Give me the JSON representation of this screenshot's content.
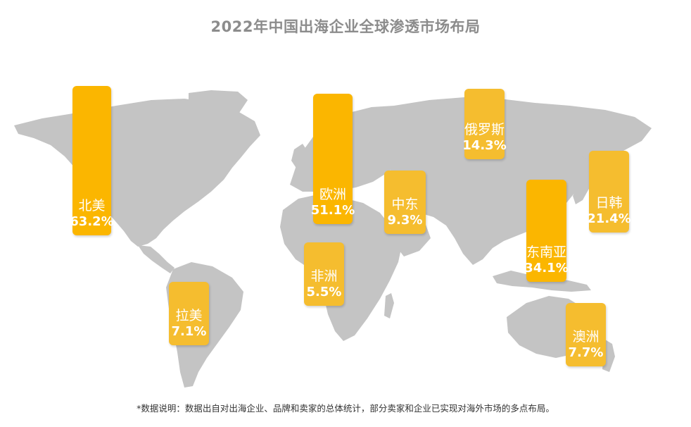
{
  "page": {
    "title": "2022年中国出海企业全球渗透市场布局",
    "footnote": "*数据说明：数据出自对出海企业、品牌和卖家的总体统计，部分卖家和企业已实现对海外市场的多点布局。"
  },
  "colors": {
    "land": "#c4c4c4",
    "bar_strong": "#fbb600",
    "bar_light": "#f5bd2f",
    "text_on_bar": "#ffffff",
    "title": "#8c8c8c"
  },
  "chart_data": {
    "type": "bar",
    "title": "2022年中国出海企业全球渗透市场布局",
    "unit": "%",
    "categories": [
      "北美",
      "欧洲",
      "中东",
      "非洲",
      "拉美",
      "俄罗斯",
      "东南亚",
      "日韩",
      "澳洲"
    ],
    "values": [
      63.2,
      51.1,
      9.3,
      5.5,
      7.1,
      14.3,
      34.1,
      21.4,
      7.7
    ],
    "labels": [
      "63.2%",
      "51.1%",
      "9.3%",
      "5.5%",
      "7.1%",
      "14.3%",
      "34.1%",
      "21.4%",
      "7.7%"
    ]
  }
}
